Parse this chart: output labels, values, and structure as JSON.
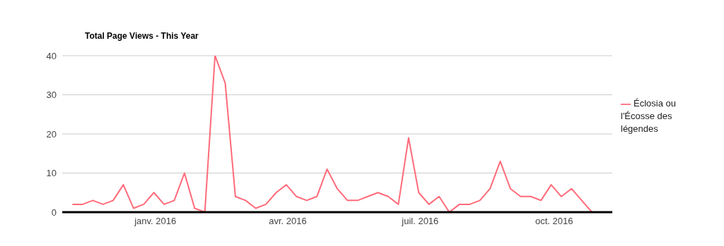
{
  "chart_data": {
    "type": "line",
    "title": "Total Page Views - This Year",
    "x": [
      "2015-11-05",
      "2015-11-12",
      "2015-11-19",
      "2015-11-26",
      "2015-12-03",
      "2015-12-10",
      "2015-12-17",
      "2015-12-24",
      "2015-12-31",
      "2016-01-07",
      "2016-01-14",
      "2016-01-21",
      "2016-01-28",
      "2016-02-04",
      "2016-02-11",
      "2016-02-18",
      "2016-02-25",
      "2016-03-03",
      "2016-03-10",
      "2016-03-17",
      "2016-03-24",
      "2016-03-31",
      "2016-04-07",
      "2016-04-14",
      "2016-04-21",
      "2016-04-28",
      "2016-05-05",
      "2016-05-12",
      "2016-05-19",
      "2016-05-26",
      "2016-06-02",
      "2016-06-09",
      "2016-06-16",
      "2016-06-23",
      "2016-06-30",
      "2016-07-07",
      "2016-07-14",
      "2016-07-21",
      "2016-07-28",
      "2016-08-04",
      "2016-08-11",
      "2016-08-18",
      "2016-08-25",
      "2016-09-01",
      "2016-09-08",
      "2016-09-15",
      "2016-09-22",
      "2016-09-29",
      "2016-10-06",
      "2016-10-13",
      "2016-10-20",
      "2016-10-27"
    ],
    "series": [
      {
        "name": "Éclosia ou l'Écosse des légendes",
        "color": "#ff6b7a",
        "values": [
          2,
          2,
          3,
          2,
          3,
          7,
          1,
          2,
          5,
          2,
          3,
          10,
          1,
          0,
          40,
          33,
          4,
          3,
          1,
          2,
          5,
          7,
          4,
          3,
          4,
          11,
          6,
          3,
          3,
          4,
          5,
          4,
          2,
          19,
          5,
          2,
          4,
          0,
          2,
          2,
          3,
          6,
          13,
          6,
          4,
          4,
          3,
          7,
          4,
          6,
          3,
          0
        ]
      }
    ],
    "xlim": [
      "2015-10-29",
      "2016-11-10"
    ],
    "xticks": [
      {
        "value": "2016-01-01",
        "label": "janv. 2016"
      },
      {
        "value": "2016-04-01",
        "label": "avr. 2016"
      },
      {
        "value": "2016-07-01",
        "label": "juil. 2016"
      },
      {
        "value": "2016-10-01",
        "label": "oct. 2016"
      }
    ],
    "ylim": [
      0,
      40
    ],
    "yticks": [
      0,
      10,
      20,
      30,
      40
    ],
    "grid": "y",
    "legend": "right",
    "marker": "none",
    "line_style": "solid"
  }
}
